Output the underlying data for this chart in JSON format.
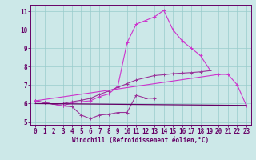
{
  "background_color": "#cce8e8",
  "grid_color": "#99cccc",
  "line_color_a": "#993399",
  "line_color_b": "#cc33cc",
  "line_color_flat": "#660066",
  "xlabel": "Windchill (Refroidissement éolien,°C)",
  "xlim": [
    -0.5,
    23.5
  ],
  "ylim": [
    4.85,
    11.35
  ],
  "xticks": [
    0,
    1,
    2,
    3,
    4,
    5,
    6,
    7,
    8,
    9,
    10,
    11,
    12,
    13,
    14,
    15,
    16,
    17,
    18,
    19,
    20,
    21,
    22,
    23
  ],
  "yticks": [
    5,
    6,
    7,
    8,
    9,
    10,
    11
  ],
  "line1_x": [
    0,
    1,
    2,
    3,
    4,
    5,
    6,
    7,
    8,
    9,
    10,
    11,
    12,
    13
  ],
  "line1_y": [
    6.15,
    6.05,
    5.97,
    5.87,
    5.83,
    5.38,
    5.18,
    5.38,
    5.42,
    5.52,
    5.52,
    6.45,
    6.3,
    6.28
  ],
  "line2_x": [
    0,
    1,
    2,
    3,
    4,
    5,
    6,
    7,
    8,
    9,
    10,
    11,
    12,
    13,
    14,
    15,
    16,
    17,
    18,
    19
  ],
  "line2_y": [
    6.15,
    6.05,
    5.97,
    5.87,
    6.05,
    6.1,
    6.15,
    6.38,
    6.52,
    6.95,
    9.3,
    10.3,
    10.5,
    10.7,
    11.05,
    10.0,
    9.4,
    9.0,
    8.6,
    7.85
  ],
  "line3_x": [
    0,
    1,
    2,
    3,
    4,
    5,
    6,
    7,
    8,
    9,
    10,
    11,
    12,
    13,
    14,
    15,
    16,
    17,
    18,
    19
  ],
  "line3_y": [
    6.15,
    6.05,
    5.97,
    6.0,
    6.1,
    6.18,
    6.28,
    6.5,
    6.68,
    6.88,
    7.08,
    7.28,
    7.4,
    7.52,
    7.56,
    7.62,
    7.65,
    7.68,
    7.72,
    7.78
  ],
  "line4_x": [
    0,
    20,
    21,
    22,
    23
  ],
  "line4_y": [
    6.15,
    7.58,
    7.58,
    7.02,
    5.9
  ],
  "line5_x": [
    0,
    23
  ],
  "line5_y": [
    6.0,
    5.9
  ]
}
